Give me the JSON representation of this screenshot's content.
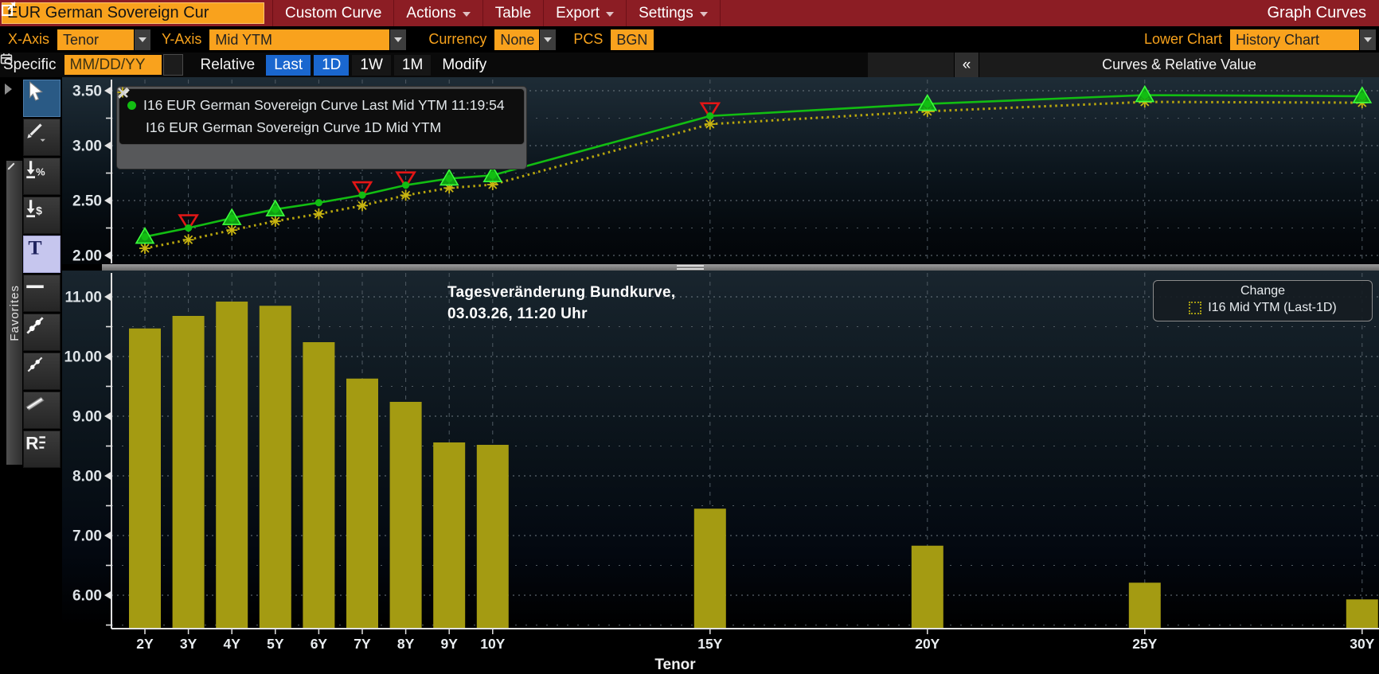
{
  "titlebar": {
    "security": "EUR German Sovereign Cur",
    "menus": [
      {
        "label": "Custom Curve",
        "arrow": false
      },
      {
        "label": "Actions",
        "arrow": true
      },
      {
        "label": "Table",
        "arrow": false
      },
      {
        "label": "Export",
        "arrow": true
      },
      {
        "label": "Settings",
        "arrow": true
      }
    ],
    "right_icon": "launch-external-icon",
    "right_label": "Graph Curves"
  },
  "toolbar_axis": {
    "xaxis_label": "X-Axis",
    "xaxis_value": "Tenor",
    "yaxis_label": "Y-Axis",
    "yaxis_value": "Mid YTM",
    "currency_label": "Currency",
    "currency_value": "None",
    "pcs_label": "PCS",
    "pcs_value": "BGN",
    "lower_chart_label": "Lower Chart",
    "lower_chart_value": "History Chart"
  },
  "toolbar_date": {
    "specific_label": "Specific",
    "date_placeholder": "MM/DD/YY",
    "relative_label": "Relative",
    "range_buttons": [
      {
        "label": "Last",
        "active": true
      },
      {
        "label": "1D",
        "active": true
      },
      {
        "label": "1W",
        "active": false
      },
      {
        "label": "1M",
        "active": false
      },
      {
        "label": "Modify",
        "plain": true
      }
    ],
    "collapse_button": "«",
    "panel_title": "Curves & Relative Value"
  },
  "side_toolbar": {
    "favorites_label": "Favorites",
    "tools": [
      {
        "name": "cursor-tool",
        "selected": "blue"
      },
      {
        "name": "draw-tool",
        "selected": ""
      },
      {
        "name": "change-percent-tool",
        "selected": ""
      },
      {
        "name": "change-dollar-tool",
        "selected": ""
      },
      {
        "name": "text-tool",
        "selected": "light"
      },
      {
        "name": "horizontal-line-tool",
        "selected": ""
      },
      {
        "name": "trendline-tool",
        "selected": ""
      },
      {
        "name": "small-trendline-tool",
        "selected": ""
      },
      {
        "name": "channel-tool",
        "selected": ""
      },
      {
        "name": "regression-tool",
        "selected": ""
      }
    ]
  },
  "upper_legend": {
    "series": [
      {
        "marker": "circle",
        "color": "#12bd12",
        "label": "I16 EUR German Sovereign Curve Last Mid YTM 11:19:54"
      },
      {
        "marker": "asterisk",
        "color": "#c9b511",
        "label": "I16 EUR German Sovereign Curve 1D Mid YTM"
      }
    ]
  },
  "lower_legend": {
    "title": "Change",
    "entry": "I16 Mid YTM (Last-1D)"
  },
  "chart_data": [
    {
      "type": "line",
      "tenors": [
        2,
        3,
        4,
        5,
        6,
        7,
        8,
        9,
        10,
        15,
        20,
        25,
        30
      ],
      "x_labels": [
        "2Y",
        "3Y",
        "4Y",
        "5Y",
        "6Y",
        "7Y",
        "8Y",
        "9Y",
        "10Y",
        "15Y",
        "20Y",
        "25Y",
        "30Y"
      ],
      "series": [
        {
          "name": "I16 EUR German Sovereign Curve Last Mid YTM 11:19:54",
          "color": "#12bd12",
          "style": "solid",
          "values": [
            2.17,
            2.25,
            2.34,
            2.42,
            2.48,
            2.55,
            2.64,
            2.7,
            2.73,
            3.27,
            3.38,
            3.46,
            3.45
          ]
        },
        {
          "name": "I16 EUR German Sovereign Curve 1D Mid YTM",
          "color": "#b9a70d",
          "style": "dotted",
          "values": [
            2.065,
            2.143,
            2.231,
            2.312,
            2.378,
            2.454,
            2.548,
            2.614,
            2.645,
            3.196,
            3.312,
            3.398,
            3.391
          ]
        }
      ],
      "up_triangle_tenors": [
        2,
        4,
        5,
        9,
        10,
        20,
        25,
        30
      ],
      "down_triangle_tenors": [
        3,
        7,
        8,
        15
      ],
      "yticks": [
        2.0,
        2.5,
        3.0,
        3.5
      ],
      "ylim": [
        1.92,
        3.62
      ],
      "grid": true,
      "legend_position": "top-left"
    },
    {
      "type": "bar",
      "title_line1": "Tagesveränderung Bundkurve,",
      "title_line2": "03.03.26, 11:20 Uhr",
      "xlabel": "Tenor",
      "tenors": [
        2,
        3,
        4,
        5,
        6,
        7,
        8,
        9,
        10,
        15,
        20,
        25,
        30
      ],
      "categories": [
        "2Y",
        "3Y",
        "4Y",
        "5Y",
        "6Y",
        "7Y",
        "8Y",
        "9Y",
        "10Y",
        "15Y",
        "20Y",
        "25Y",
        "30Y"
      ],
      "values": [
        10.47,
        10.68,
        10.92,
        10.85,
        10.24,
        9.63,
        9.24,
        8.56,
        8.52,
        7.45,
        6.83,
        6.21,
        5.93
      ],
      "bar_color": "#a49b12",
      "yticks": [
        6,
        7,
        8,
        9,
        10,
        11
      ],
      "ylim": [
        5.44,
        11.4
      ],
      "grid": true,
      "legend_position": "top-right"
    }
  ]
}
